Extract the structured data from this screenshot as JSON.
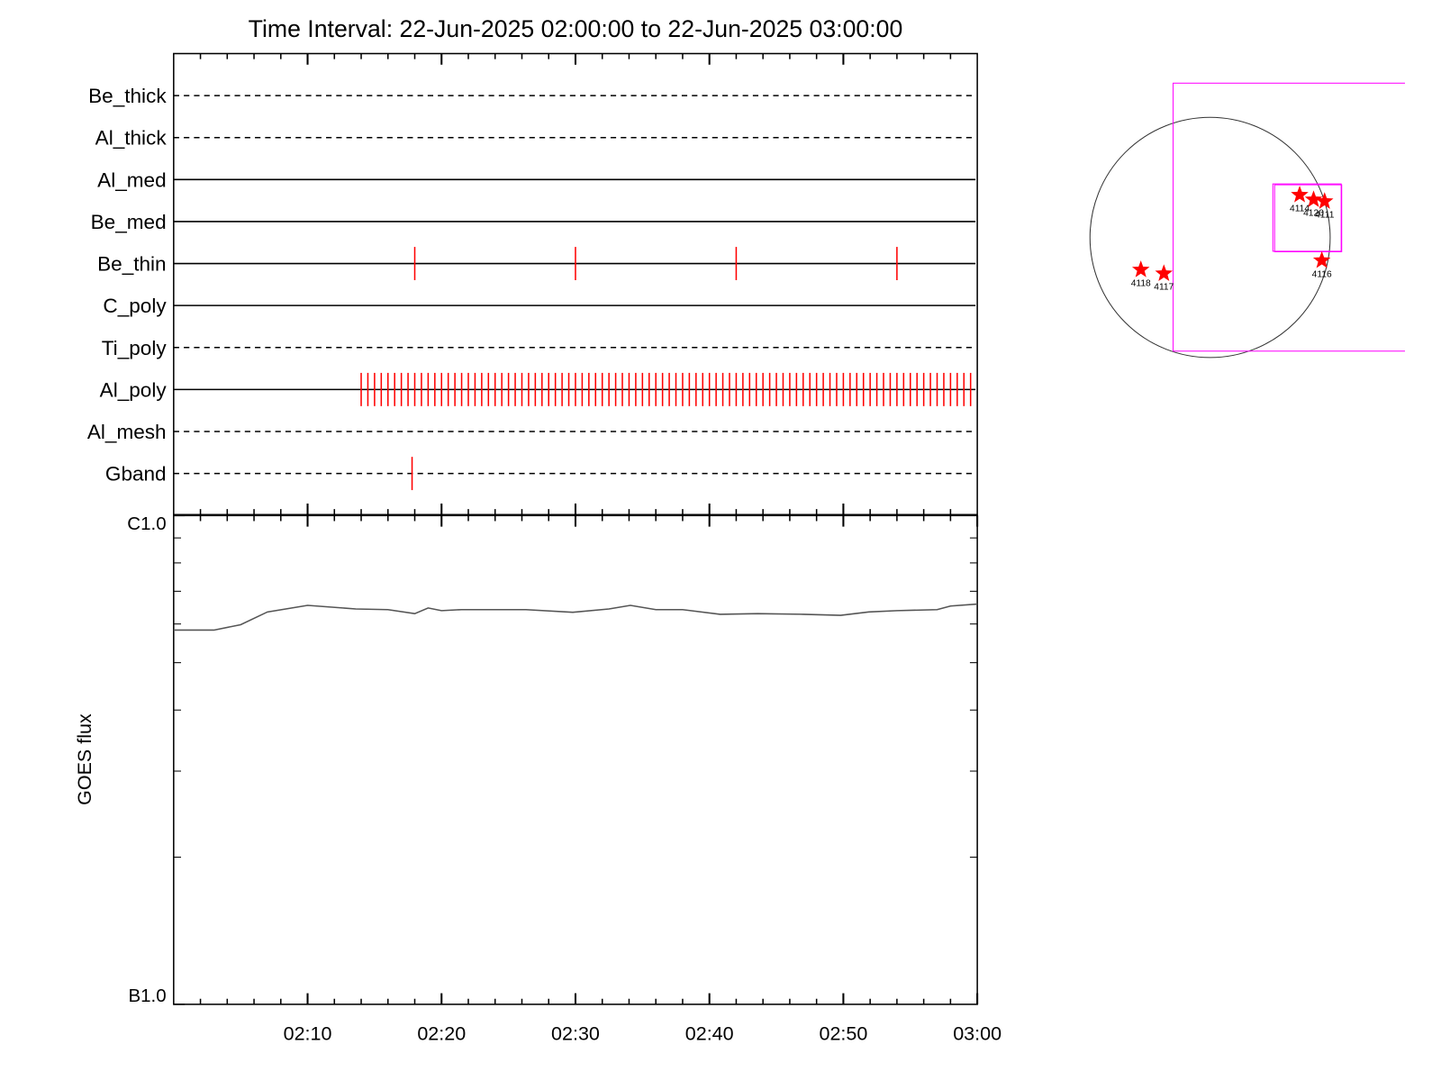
{
  "title": "Time Interval: 22-Jun-2025 02:00:00 to 22-Jun-2025 03:00:00",
  "chart_data": [
    {
      "type": "timeline",
      "xlim": [
        0,
        60
      ],
      "color": "#ff0000",
      "series": [
        {
          "name": "Be_thick",
          "line": "dashed",
          "events": []
        },
        {
          "name": "Al_thick",
          "line": "dashed",
          "events": []
        },
        {
          "name": "Al_med",
          "line": "solid",
          "events": []
        },
        {
          "name": "Be_med",
          "line": "solid",
          "events": []
        },
        {
          "name": "Be_thin",
          "line": "solid",
          "events": [
            18,
            30,
            42,
            54
          ]
        },
        {
          "name": "C_poly",
          "line": "solid",
          "events": []
        },
        {
          "name": "Ti_poly",
          "line": "dashed",
          "events": []
        },
        {
          "name": "Al_poly",
          "line": "solid",
          "events": [
            14,
            14.5,
            15,
            15.5,
            16,
            16.5,
            17,
            17.5,
            18,
            18.5,
            19,
            19.5,
            20,
            20.5,
            21,
            21.5,
            22,
            22.5,
            23,
            23.5,
            24,
            24.5,
            25,
            25.5,
            26,
            26.5,
            27,
            27.5,
            28,
            28.5,
            29,
            29.5,
            30,
            30.5,
            31,
            31.5,
            32,
            32.5,
            33,
            33.5,
            34,
            34.5,
            35,
            35.5,
            36,
            36.5,
            37,
            37.5,
            38,
            38.5,
            39,
            39.5,
            40,
            40.5,
            41,
            41.5,
            42,
            42.5,
            43,
            43.5,
            44,
            44.5,
            45,
            45.5,
            46,
            46.5,
            47,
            47.5,
            48,
            48.5,
            49,
            49.5,
            50,
            50.5,
            51,
            51.5,
            52,
            52.5,
            53,
            53.5,
            54,
            54.5,
            55,
            55.5,
            56,
            56.5,
            57,
            57.5,
            58,
            58.5,
            59,
            59.5
          ]
        },
        {
          "name": "Al_mesh",
          "line": "dashed",
          "events": []
        },
        {
          "name": "Gband",
          "line": "dashed",
          "events": [
            17.8
          ]
        }
      ]
    },
    {
      "type": "line",
      "ylabel": "GOES flux",
      "color": "#555555",
      "log_y": true,
      "xlim": [
        0,
        60
      ],
      "xticks": [
        {
          "value": 10,
          "label": "02:10"
        },
        {
          "value": 20,
          "label": "02:20"
        },
        {
          "value": 30,
          "label": "02:30"
        },
        {
          "value": 40,
          "label": "02:40"
        },
        {
          "value": 50,
          "label": "02:50"
        },
        {
          "value": 60,
          "label": "03:00"
        }
      ],
      "ylim": [
        1e-07,
        1e-06
      ],
      "yticks": [
        {
          "value": 1e-06,
          "label": "C1.0"
        },
        {
          "value": 1e-07,
          "label": "B1.0"
        }
      ],
      "x": [
        0,
        3,
        5,
        7,
        10,
        13.6,
        16,
        18,
        19,
        20,
        21.5,
        26.3,
        29.8,
        32.5,
        34.1,
        36,
        38,
        40.8,
        43.6,
        47,
        49.8,
        51.9,
        54,
        57,
        58,
        60
      ],
      "values": [
        5.83e-07,
        5.83e-07,
        5.98e-07,
        6.35e-07,
        6.55e-07,
        6.44e-07,
        6.42e-07,
        6.3e-07,
        6.47e-07,
        6.39e-07,
        6.42e-07,
        6.42e-07,
        6.34e-07,
        6.44e-07,
        6.55e-07,
        6.42e-07,
        6.42e-07,
        6.28e-07,
        6.3e-07,
        6.28e-07,
        6.25e-07,
        6.35e-07,
        6.39e-07,
        6.42e-07,
        6.53e-07,
        6.59e-07
      ]
    }
  ],
  "map": {
    "fov": [
      {
        "x": [
          -292,
          1547
        ],
        "y": [
          1219,
          -898
        ]
      },
      {
        "x": [
          496,
          1036
        ],
        "y": [
          423,
          -109
        ]
      },
      {
        "x": [
          510,
          1040
        ],
        "y": [
          416,
          -113
        ]
      }
    ],
    "markers": [
      {
        "label": "4114",
        "x": 708,
        "y": 336
      },
      {
        "label": "4120",
        "x": 818,
        "y": 299
      },
      {
        "label": "4111",
        "x": 905,
        "y": 285
      },
      {
        "label": "4116",
        "x": 883,
        "y": -182
      },
      {
        "label": "4118",
        "x": -547,
        "y": -255
      },
      {
        "label": "4117",
        "x": -365,
        "y": -285
      }
    ]
  }
}
